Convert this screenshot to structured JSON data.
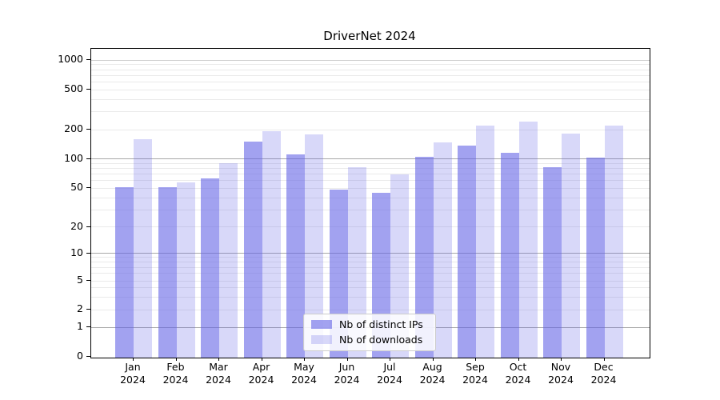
{
  "title": "DriverNet 2024",
  "legend": {
    "items": [
      {
        "label": "Nb of distinct IPs",
        "color": "#a4a4f0",
        "rgba": "rgba(100,100,230,0.6)"
      },
      {
        "label": "Nb of downloads",
        "color": "#d8d8f8",
        "rgba": "rgba(100,100,230,0.25)"
      }
    ]
  },
  "chart_data": {
    "type": "bar",
    "title": "DriverNet 2024",
    "categories": [
      "Jan 2024",
      "Feb 2024",
      "Mar 2024",
      "Apr 2024",
      "May 2024",
      "Jun 2024",
      "Jul 2024",
      "Aug 2024",
      "Sep 2024",
      "Oct 2024",
      "Nov 2024",
      "Dec 2024"
    ],
    "series": [
      {
        "name": "Nb of distinct IPs",
        "color": "#a4a4f0",
        "rgba": "rgba(100,100,230,0.6)",
        "values": [
          51,
          51,
          63,
          150,
          112,
          48,
          45,
          106,
          137,
          116,
          83,
          104
        ]
      },
      {
        "name": "Nb of downloads",
        "color": "#d8d8f8",
        "rgba": "rgba(100,100,230,0.25)",
        "values": [
          158,
          57,
          91,
          193,
          178,
          82,
          69,
          148,
          218,
          240,
          182,
          220
        ]
      }
    ],
    "xlabel": "",
    "ylabel": "",
    "yscale": "symlog",
    "y_ticks": [
      0,
      1,
      2,
      5,
      10,
      20,
      50,
      100,
      200,
      500,
      1000
    ],
    "ylim": [
      0,
      1300
    ],
    "grid": "on",
    "legend_position": "lower center"
  }
}
